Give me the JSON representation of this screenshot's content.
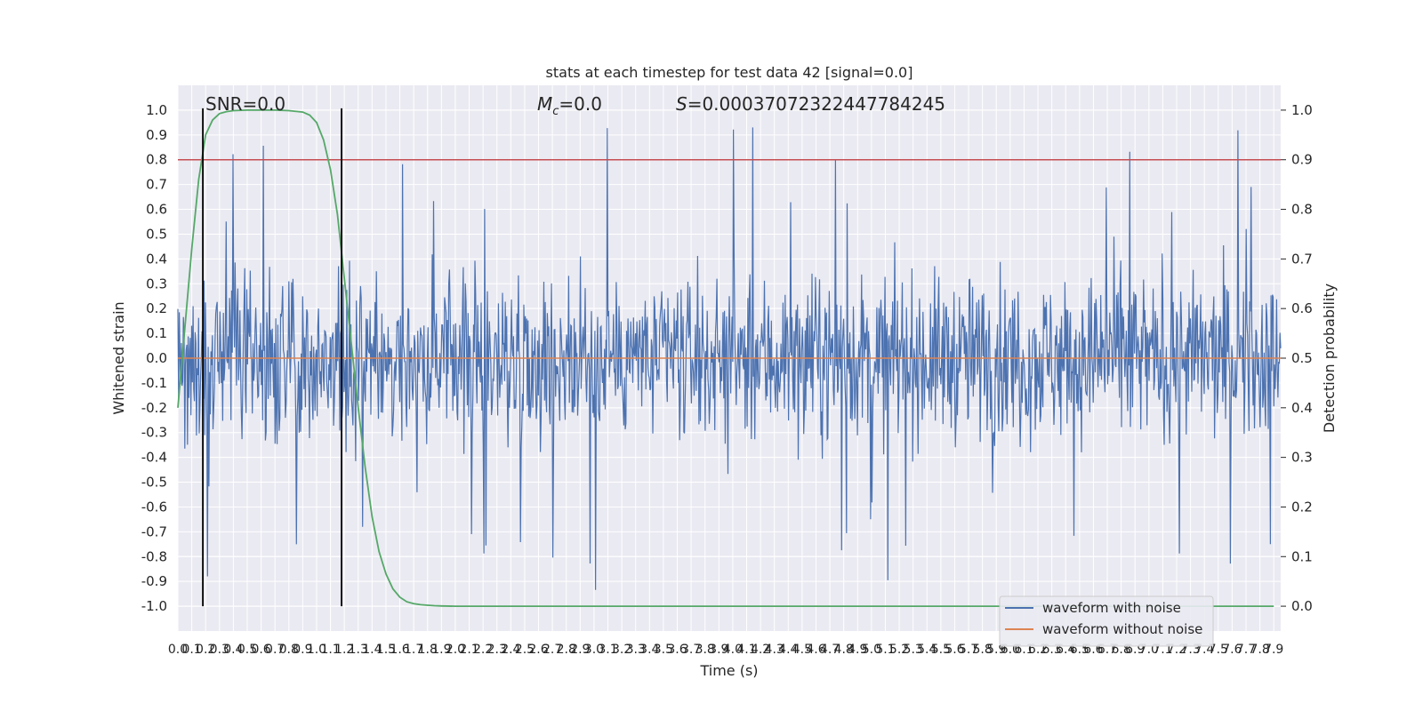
{
  "chart_data": {
    "type": "line",
    "title": "stats at each timestep for test data 42 [signal=0.0]",
    "xlabel": "Time (s)",
    "ylabel": "Whitened strain",
    "y2label": "Detection probability",
    "xlim": [
      0.0,
      7.95
    ],
    "ylim": [
      -1.1,
      1.1
    ],
    "y2lim": [
      -0.05,
      1.05
    ],
    "x_ticks": [
      "0.0",
      "0.1",
      "0.2",
      "0.3",
      "0.4",
      "0.5",
      "0.6",
      "0.7",
      "0.8",
      "0.9",
      "1.0",
      "1.1",
      "1.2",
      "1.3",
      "1.4",
      "1.5",
      "1.6",
      "1.7",
      "1.8",
      "1.9",
      "2.0",
      "2.1",
      "2.2",
      "2.3",
      "2.4",
      "2.5",
      "2.6",
      "2.7",
      "2.8",
      "2.9",
      "3.0",
      "3.1",
      "3.2",
      "3.3",
      "3.4",
      "3.5",
      "3.6",
      "3.7",
      "3.8",
      "3.9",
      "4.0",
      "4.1",
      "4.2",
      "4.3",
      "4.4",
      "4.5",
      "4.6",
      "4.7",
      "4.8",
      "4.9",
      "5.0",
      "5.1",
      "5.2",
      "5.3",
      "5.4",
      "5.5",
      "5.6",
      "5.7",
      "5.8",
      "5.9",
      "6.0",
      "6.1",
      "6.2",
      "6.3",
      "6.4",
      "6.5",
      "6.6",
      "6.7",
      "6.8",
      "6.9",
      "7.0",
      "7.1",
      "7.2",
      "7.3",
      "7.4",
      "7.5",
      "7.6",
      "7.7",
      "7.8",
      "7.9"
    ],
    "y_ticks": [
      "1.0",
      "0.9",
      "0.8",
      "0.7",
      "0.6",
      "0.5",
      "0.4",
      "0.3",
      "0.2",
      "0.1",
      "0.0",
      "-0.1",
      "-0.2",
      "-0.3",
      "-0.4",
      "-0.5",
      "-0.6",
      "-0.7",
      "-0.8",
      "-0.9",
      "-1.0"
    ],
    "y2_ticks": [
      "1.0",
      "0.9",
      "0.8",
      "0.7",
      "0.6",
      "0.5",
      "0.4",
      "0.3",
      "0.2",
      "0.1",
      "0.0"
    ],
    "series": [
      {
        "name": "waveform with noise",
        "color": "#4c72b0",
        "axis": "left",
        "style": "dense noise, mostly within ±0.4, spikes to about ±0.95"
      },
      {
        "name": "waveform without noise",
        "color": "#dd8452",
        "axis": "left",
        "values_note": "flat at 0.0"
      },
      {
        "name": "detection probability",
        "color": "#55a868",
        "axis": "right",
        "x": [
          0.0,
          0.05,
          0.1,
          0.15,
          0.2,
          0.25,
          0.3,
          0.35,
          0.4,
          0.5,
          0.6,
          0.7,
          0.8,
          0.9,
          0.95,
          1.0,
          1.05,
          1.1,
          1.15,
          1.2,
          1.25,
          1.3,
          1.35,
          1.4,
          1.45,
          1.5,
          1.55,
          1.6,
          1.65,
          1.7,
          1.75,
          1.8,
          1.85,
          1.9,
          2.0,
          2.1,
          2.2,
          2.5,
          3.0,
          4.0,
          5.0,
          6.0,
          7.0,
          7.9
        ],
        "values": [
          0.4,
          0.56,
          0.72,
          0.86,
          0.95,
          0.98,
          0.993,
          0.997,
          0.999,
          1.0,
          1.0,
          1.0,
          0.999,
          0.996,
          0.99,
          0.975,
          0.94,
          0.88,
          0.79,
          0.66,
          0.53,
          0.4,
          0.28,
          0.18,
          0.11,
          0.065,
          0.035,
          0.018,
          0.009,
          0.005,
          0.003,
          0.002,
          0.001,
          0.0005,
          0.0,
          0.0,
          0.0,
          0.0,
          0.0,
          0.0,
          0.0,
          0.0,
          0.0,
          0.0
        ]
      }
    ],
    "threshold_line": {
      "value": 0.9,
      "axis": "right",
      "color": "#c44e52"
    },
    "vertical_markers": [
      0.18,
      1.18
    ],
    "annotations": {
      "snr": "SNR=0.0",
      "mc_symbol": "M",
      "mc_sub": "c",
      "mc_value": "=0.0",
      "s_symbol": "S",
      "s_value": "=0.00037072322447784245"
    },
    "legend": {
      "position": "bottom-right",
      "entries": [
        "waveform with noise",
        "waveform without noise"
      ]
    }
  }
}
